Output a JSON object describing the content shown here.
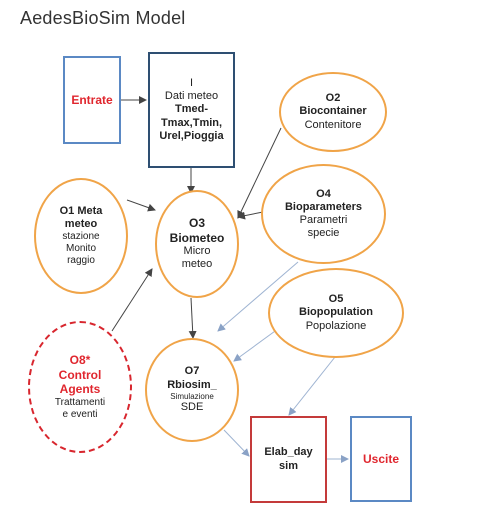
{
  "title": "AedesBioSim Model",
  "nodes": {
    "entrate": {
      "label": "Entrate"
    },
    "dati_meteo": {
      "lines": [
        "I",
        "Dati meteo",
        "Tmed-",
        "Tmax,Tmin,",
        "Urel,Pioggia"
      ]
    },
    "o2": {
      "lines": [
        "O2",
        "Biocontainer",
        "Contenitore"
      ]
    },
    "o1": {
      "lines": [
        "O1 Meta",
        "meteo",
        "stazione",
        "Monito",
        "raggio"
      ]
    },
    "o3": {
      "lines": [
        "O3",
        "Biometeo",
        "Micro",
        "meteo"
      ]
    },
    "o4": {
      "lines": [
        "O4",
        "Bioparameters",
        "Parametri",
        "specie"
      ]
    },
    "o5": {
      "lines": [
        "O5",
        "Biopopulation",
        "Popolazione"
      ]
    },
    "o8": {
      "lines": [
        "O8*",
        "Control",
        "Agents",
        "Trattamenti",
        "e eventi"
      ]
    },
    "o7": {
      "lines": [
        "O7",
        "Rbiosim_",
        "Simulazione",
        "SDE"
      ]
    },
    "elab": {
      "lines": [
        "Elab_day",
        "sim"
      ]
    },
    "uscite": {
      "label": "Uscite"
    }
  },
  "colors": {
    "blue_border": "#5b89c4",
    "dark_blue_border": "#2e4f72",
    "orange_border": "#f0a448",
    "red": "#e0262e",
    "edge": "#444444",
    "edge_light": "#9fb4d2"
  }
}
